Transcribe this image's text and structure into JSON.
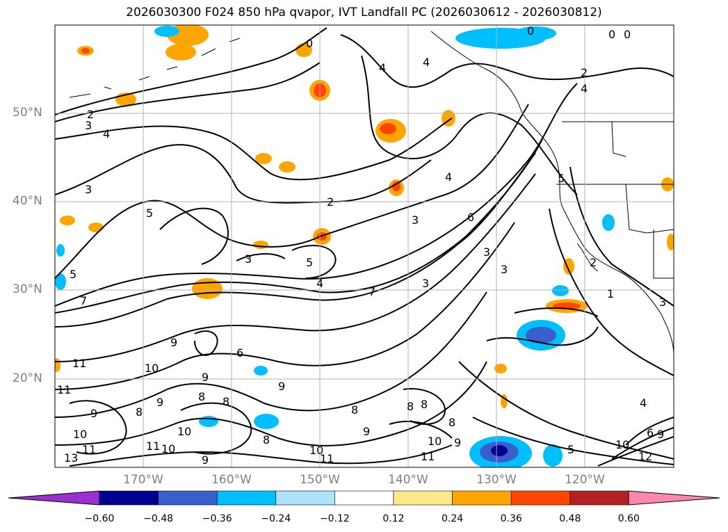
{
  "title": "2026030300 F024 850 hPa qvapor, IVT Landfall PC (2026030612 - 2026030812)",
  "lat_labels": [
    "50°N",
    "40°N",
    "30°N",
    "20°N"
  ],
  "lon_labels": [
    "170°W",
    "160°W",
    "150°W",
    "140°W",
    "130°W",
    "120°W"
  ],
  "colorbar": {
    "ticks": [
      "−0.60",
      "−0.48",
      "−0.36",
      "−0.24",
      "−0.12",
      "0.12",
      "0.24",
      "0.36",
      "0.48",
      "0.60"
    ],
    "colors": [
      "#9b30d0",
      "#000090",
      "#3a5fcd",
      "#00bfff",
      "#aee2fa",
      "#ffffff",
      "#ffe88a",
      "#ffa500",
      "#ff4500",
      "#b22222",
      "#ff88aa"
    ]
  },
  "contour_labels": [
    "0",
    "1",
    "2",
    "3",
    "4",
    "5",
    "6",
    "7",
    "8",
    "9",
    "10",
    "11",
    "12",
    "13"
  ],
  "anomaly_colors": {
    "pos_weak": "#ffe88a",
    "pos_mid": "#ffa500",
    "pos_strong": "#ff4500",
    "neg_weak": "#aee2fa",
    "neg_mid": "#00bfff",
    "neg_strong": "#3a5fcd",
    "neg_max": "#000090"
  }
}
